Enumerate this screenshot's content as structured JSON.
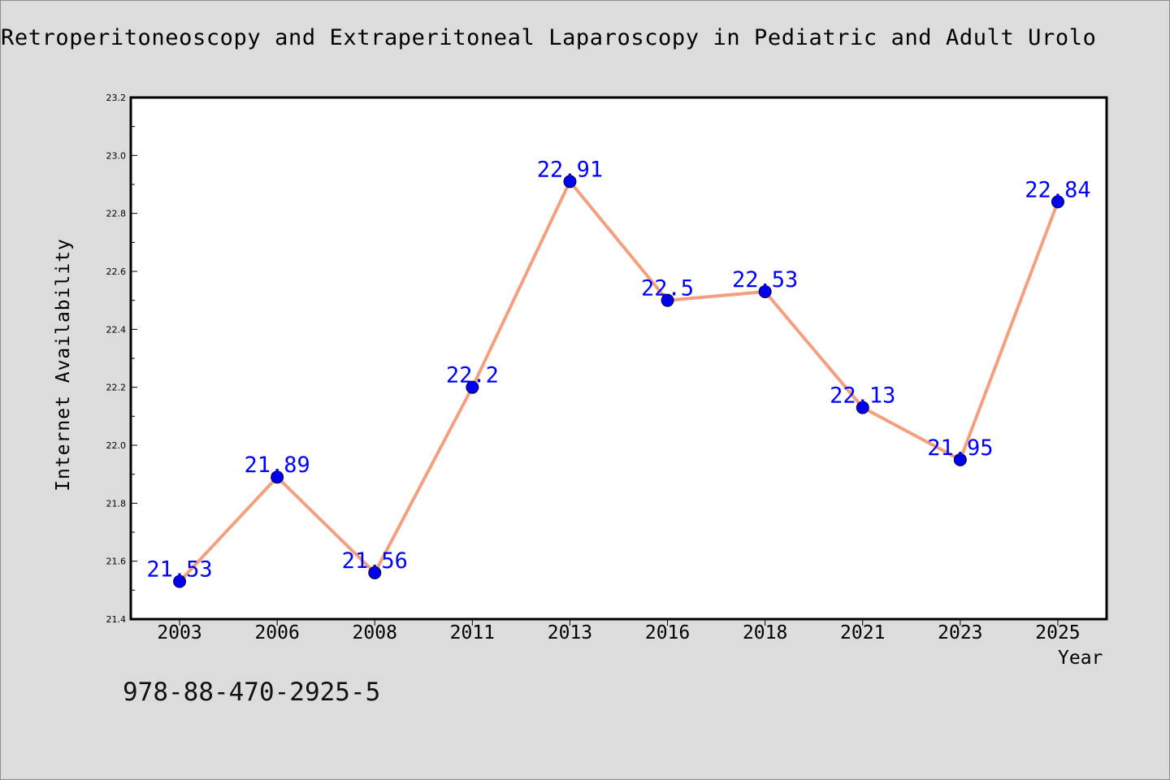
{
  "chart_data": {
    "type": "line",
    "title": "Retroperitoneoscopy and Extraperitoneal Laparoscopy in Pediatric and Adult Urolo",
    "xlabel": "Year",
    "ylabel": "Internet Availability",
    "categories": [
      "2003",
      "2006",
      "2008",
      "2011",
      "2013",
      "2016",
      "2018",
      "2021",
      "2023",
      "2025"
    ],
    "values": [
      21.53,
      21.89,
      21.56,
      22.2,
      22.91,
      22.5,
      22.53,
      22.13,
      21.95,
      22.84
    ],
    "data_labels": [
      "21.53",
      "21.89",
      "21.56",
      "22.2",
      "22.91",
      "22.5",
      "22.53",
      "22.13",
      "21.95",
      "22.84"
    ],
    "ylim": [
      21.4,
      23.2
    ],
    "yticks": [
      "21.4",
      "21.6",
      "21.8",
      "22.0",
      "22.2",
      "22.4",
      "22.6",
      "22.8",
      "23.0",
      "23.2"
    ],
    "grid": false,
    "line_color": "#f4a07e",
    "marker_color": "#0000ee",
    "label_color": "#0000ff"
  },
  "footer": {
    "isbn": "978-88-470-2925-5"
  }
}
